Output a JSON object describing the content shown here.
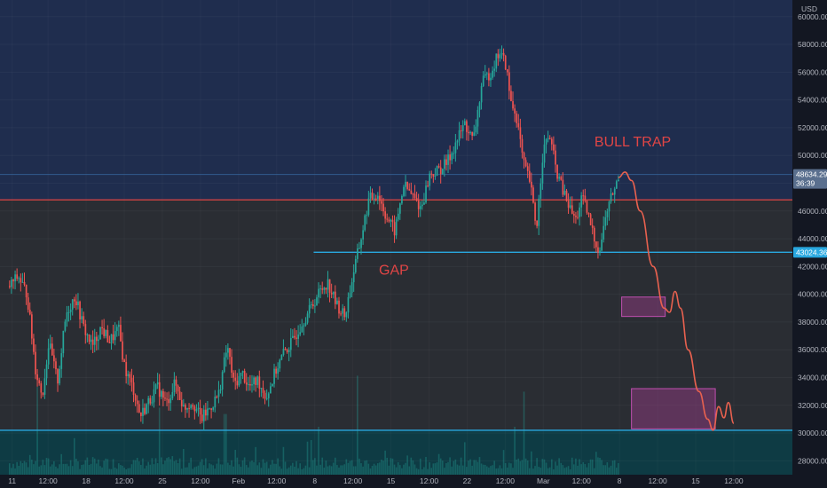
{
  "chart_data": {
    "type": "candlestick",
    "currency": "USD",
    "price_scale": {
      "ticks": [
        28000,
        30000,
        32000,
        34000,
        36000,
        38000,
        40000,
        42000,
        44000,
        46000,
        48000,
        50000,
        52000,
        54000,
        56000,
        58000,
        60000
      ],
      "tick_labels": [
        "28000.00",
        "30000.00",
        "32000.00",
        "34000.00",
        "36000.00",
        "38000.00",
        "40000.00",
        "42000.00",
        "44000.00",
        "46000.00",
        "48000.00",
        "50000.00",
        "52000.00",
        "54000.00",
        "56000.00",
        "58000.00",
        "60000.00"
      ],
      "range": [
        27000,
        61200
      ]
    },
    "time_scale": {
      "range": [
        0,
        36.4
      ],
      "ticks": [
        {
          "t": 0.15,
          "label": "11"
        },
        {
          "t": 1.8,
          "label": "12:00"
        },
        {
          "t": 3.55,
          "label": "18"
        },
        {
          "t": 5.3,
          "label": "12:00"
        },
        {
          "t": 7.05,
          "label": "25"
        },
        {
          "t": 8.8,
          "label": "12:00"
        },
        {
          "t": 10.55,
          "label": "Feb"
        },
        {
          "t": 12.3,
          "label": "12:00"
        },
        {
          "t": 14.05,
          "label": "8"
        },
        {
          "t": 15.8,
          "label": "12:00"
        },
        {
          "t": 17.55,
          "label": "15"
        },
        {
          "t": 19.3,
          "label": "12:00"
        },
        {
          "t": 21.05,
          "label": "22"
        },
        {
          "t": 22.8,
          "label": "12:00"
        },
        {
          "t": 24.55,
          "label": "Mar"
        },
        {
          "t": 26.3,
          "label": "12:00"
        },
        {
          "t": 28.05,
          "label": "8"
        },
        {
          "t": 29.8,
          "label": "12:00"
        },
        {
          "t": 31.55,
          "label": "15"
        },
        {
          "t": 33.3,
          "label": "12:00"
        }
      ]
    },
    "zones": [
      {
        "name": "upper",
        "from": 46800,
        "to": 61200,
        "color": "#1f2d4e"
      },
      {
        "name": "middle",
        "from": 30200,
        "to": 46800,
        "color": "#2a2d33"
      },
      {
        "name": "lower",
        "from": 27000,
        "to": 30200,
        "color": "#0e3b44"
      }
    ],
    "levels": [
      {
        "name": "resistance",
        "price": 46800,
        "color": "#e04545",
        "from_t": 0
      },
      {
        "name": "gap-support",
        "price": 43024.36,
        "color": "#29a8e0",
        "from_t": 14.0
      },
      {
        "name": "floor",
        "price": 30200,
        "color": "#29a8e0",
        "from_t": 0
      },
      {
        "name": "current",
        "price": 48634.29,
        "color": "#3b6fa8",
        "from_t": 0
      }
    ],
    "price_labels": [
      {
        "price": 48634.29,
        "text": "48634.29",
        "sub": "36:39",
        "color": "#5a6f8e"
      },
      {
        "price": 43024.36,
        "text": "43024.36",
        "color": "#29a8e0"
      }
    ],
    "price_path": [
      [
        0,
        40600
      ],
      [
        0.4,
        41300
      ],
      [
        0.8,
        40000
      ],
      [
        1.2,
        34500
      ],
      [
        1.5,
        32700
      ],
      [
        1.8,
        36500
      ],
      [
        2.2,
        33700
      ],
      [
        2.6,
        38600
      ],
      [
        3.0,
        39900
      ],
      [
        3.4,
        37600
      ],
      [
        3.8,
        36200
      ],
      [
        4.2,
        37600
      ],
      [
        4.6,
        36600
      ],
      [
        5.0,
        37500
      ],
      [
        5.3,
        34600
      ],
      [
        5.7,
        33100
      ],
      [
        6.0,
        31200
      ],
      [
        6.4,
        32300
      ],
      [
        6.8,
        33300
      ],
      [
        7.2,
        32100
      ],
      [
        7.6,
        33600
      ],
      [
        8.0,
        31800
      ],
      [
        8.4,
        32300
      ],
      [
        8.8,
        31000
      ],
      [
        9.2,
        31800
      ],
      [
        9.6,
        32800
      ],
      [
        10.0,
        36300
      ],
      [
        10.3,
        33500
      ],
      [
        10.7,
        34300
      ],
      [
        11.0,
        33300
      ],
      [
        11.4,
        33800
      ],
      [
        11.8,
        32600
      ],
      [
        12.2,
        34400
      ],
      [
        12.6,
        35800
      ],
      [
        13.0,
        36600
      ],
      [
        13.4,
        37900
      ],
      [
        13.8,
        38900
      ],
      [
        14.2,
        40100
      ],
      [
        14.6,
        40900
      ],
      [
        15.0,
        39300
      ],
      [
        15.4,
        38400
      ],
      [
        15.8,
        41600
      ],
      [
        16.1,
        43700
      ],
      [
        16.5,
        46800
      ],
      [
        16.9,
        47300
      ],
      [
        17.3,
        45600
      ],
      [
        17.7,
        44500
      ],
      [
        18.1,
        47900
      ],
      [
        18.5,
        47100
      ],
      [
        18.9,
        46200
      ],
      [
        19.3,
        48600
      ],
      [
        19.7,
        48900
      ],
      [
        20.1,
        49500
      ],
      [
        20.5,
        50900
      ],
      [
        20.9,
        52300
      ],
      [
        21.3,
        51000
      ],
      [
        21.7,
        55200
      ],
      [
        22.1,
        56000
      ],
      [
        22.5,
        57500
      ],
      [
        22.8,
        56500
      ],
      [
        23.0,
        54000
      ],
      [
        23.3,
        52700
      ],
      [
        23.6,
        49400
      ],
      [
        23.9,
        48100
      ],
      [
        24.2,
        44700
      ],
      [
        24.5,
        50300
      ],
      [
        24.8,
        51500
      ],
      [
        25.1,
        49000
      ],
      [
        25.4,
        47500
      ],
      [
        25.7,
        46300
      ],
      [
        26.0,
        45300
      ],
      [
        26.3,
        47000
      ],
      [
        26.6,
        45500
      ],
      [
        26.9,
        43800
      ],
      [
        27.1,
        43100
      ],
      [
        27.4,
        45800
      ],
      [
        27.7,
        47300
      ],
      [
        28.0,
        48400
      ]
    ],
    "forecast_path": [
      [
        28.0,
        48400
      ],
      [
        28.3,
        48800
      ],
      [
        28.6,
        48200
      ],
      [
        29.0,
        46000
      ],
      [
        29.6,
        42000
      ],
      [
        30.1,
        39000
      ],
      [
        30.35,
        38700
      ],
      [
        30.6,
        40200
      ],
      [
        30.85,
        39000
      ],
      [
        31.2,
        36000
      ],
      [
        31.7,
        33000
      ],
      [
        32.1,
        31000
      ],
      [
        32.35,
        30200
      ],
      [
        32.6,
        31900
      ],
      [
        32.85,
        31100
      ],
      [
        33.05,
        32200
      ],
      [
        33.3,
        30700
      ]
    ],
    "boxes": [
      {
        "t1": 28.15,
        "t2": 30.15,
        "p1": 38400,
        "p2": 39800,
        "color": "#9b3d8a"
      },
      {
        "t1": 28.6,
        "t2": 32.45,
        "p1": 30300,
        "p2": 33200,
        "color": "#9b3d8a"
      }
    ],
    "annotations": [
      {
        "text": "BULL TRAP",
        "t": 26.9,
        "price": 50650,
        "color": "#e04545"
      },
      {
        "text": "GAP",
        "t": 17.0,
        "price": 41400,
        "color": "#e04545"
      }
    ],
    "volume_spikes": [
      {
        "t": 1.3,
        "h": 0.55
      },
      {
        "t": 6.9,
        "h": 0.42
      },
      {
        "t": 9.9,
        "h": 0.38
      },
      {
        "t": 16.0,
        "h": 0.62
      },
      {
        "t": 23.6,
        "h": 0.52
      },
      {
        "t": 23.2,
        "h": 0.3
      },
      {
        "t": 14.2,
        "h": 0.3
      }
    ]
  }
}
